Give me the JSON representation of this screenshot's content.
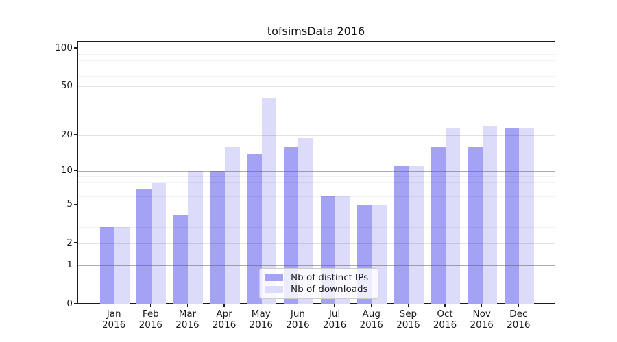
{
  "figure": {
    "background": "#ffffff"
  },
  "chart_data": {
    "type": "bar",
    "title": "tofsimsData 2016",
    "categories": [
      "Jan",
      "Feb",
      "Mar",
      "Apr",
      "May",
      "Jun",
      "Jul",
      "Aug",
      "Sep",
      "Oct",
      "Nov",
      "Dec"
    ],
    "year_label": "2016",
    "series": [
      {
        "name": "Nb of distinct IPs",
        "color": "#a4a2f4",
        "values": [
          3,
          7,
          4,
          10,
          14,
          16,
          6,
          5,
          11,
          16,
          16,
          23
        ]
      },
      {
        "name": "Nb of downloads",
        "color": "#dcdbfa",
        "values": [
          3,
          8,
          10,
          16,
          40,
          19,
          6,
          5,
          11,
          23,
          24,
          23
        ]
      }
    ],
    "xlabel": "",
    "ylabel": "",
    "y_axis": {
      "scale": "log10(value+1)",
      "ylim": [
        0,
        100
      ],
      "tick_labels": [
        0,
        1,
        2,
        5,
        10,
        20,
        50,
        100
      ],
      "major_gridlines": [
        1,
        10,
        100
      ],
      "mid_gridlines": [
        2,
        5,
        20,
        50
      ],
      "minor_gridlines": [
        3,
        4,
        6,
        7,
        8,
        9,
        30,
        40,
        60,
        70,
        80,
        90
      ]
    },
    "grid": true,
    "legend": {
      "position": "lower center",
      "labels": [
        "Nb of distinct IPs",
        "Nb of downloads"
      ]
    }
  }
}
